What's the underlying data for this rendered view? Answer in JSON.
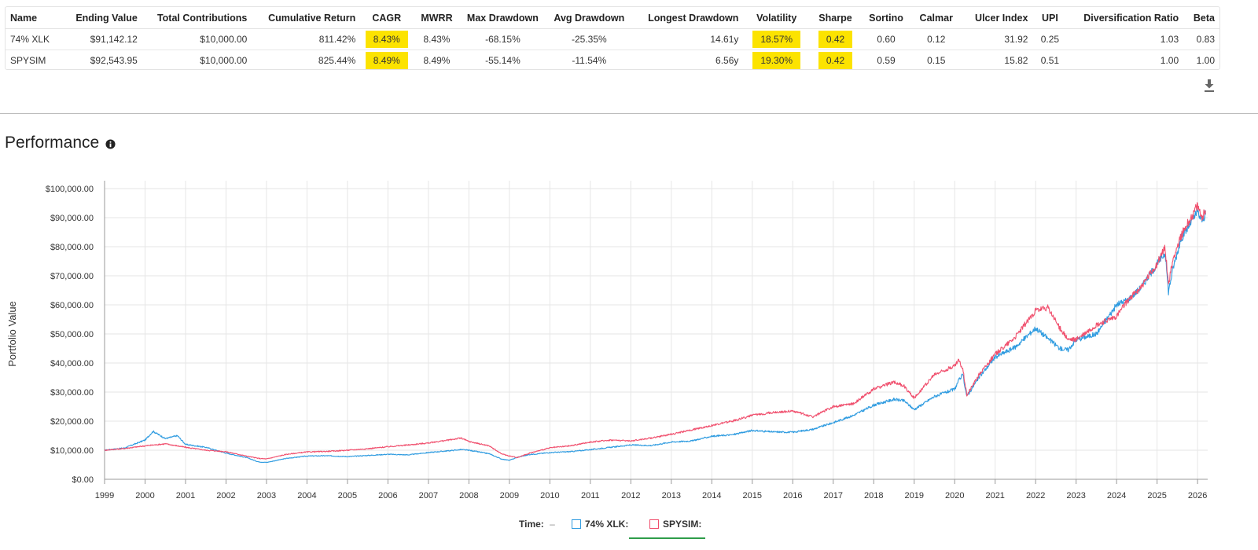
{
  "table": {
    "columns": [
      "Name",
      "Ending Value",
      "Total Contributions",
      "Cumulative Return",
      "CAGR",
      "MWRR",
      "Max Drawdown",
      "Avg Drawdown",
      "Longest Drawdown",
      "Volatility",
      "Sharpe",
      "Sortino",
      "Calmar",
      "Ulcer Index",
      "UPI",
      "Diversification Ratio",
      "Beta"
    ],
    "rows": [
      [
        "74% XLK",
        "$91,142.12",
        "$10,000.00",
        "811.42%",
        "8.43%",
        "8.43%",
        "-68.15%",
        "-25.35%",
        "14.61y",
        "18.57%",
        "0.42",
        "0.60",
        "0.12",
        "31.92",
        "0.25",
        "1.03",
        "0.83"
      ],
      [
        "SPYSIM",
        "$92,543.95",
        "$10,000.00",
        "825.44%",
        "8.49%",
        "8.49%",
        "-55.14%",
        "-11.54%",
        "6.56y",
        "19.30%",
        "0.42",
        "0.59",
        "0.15",
        "15.82",
        "0.51",
        "1.00",
        "1.00"
      ]
    ],
    "highlight_color": "#fce300"
  },
  "section": {
    "title": "Performance"
  },
  "icons": {
    "info": "info-icon",
    "download": "download-icon"
  },
  "legend": {
    "time_label": "Time:",
    "time_value": "–"
  },
  "chart_data": {
    "type": "line",
    "ylabel": "Portfolio Value",
    "xlim": [
      1999,
      2026.25
    ],
    "ylim": [
      0,
      100000
    ],
    "y_ticks": [
      "$0.00",
      "$10,000.00",
      "$20,000.00",
      "$30,000.00",
      "$40,000.00",
      "$50,000.00",
      "$60,000.00",
      "$70,000.00",
      "$80,000.00",
      "$90,000.00",
      "$100,000.00"
    ],
    "x_ticks": [
      "1999",
      "2000",
      "2001",
      "2002",
      "2003",
      "2004",
      "2005",
      "2006",
      "2007",
      "2008",
      "2009",
      "2010",
      "2011",
      "2012",
      "2013",
      "2014",
      "2015",
      "2016",
      "2017",
      "2018",
      "2019",
      "2020",
      "2021",
      "2022",
      "2023",
      "2024",
      "2025",
      "2026"
    ],
    "grid": true,
    "legend_position": "bottom-center",
    "series": [
      {
        "name": "74% XLK:",
        "color": "#2e9be0",
        "x": [
          1999,
          1999.5,
          2000,
          2000.2,
          2000.5,
          2000.8,
          2001,
          2001.5,
          2002,
          2002.5,
          2002.8,
          2003,
          2003.5,
          2004,
          2004.5,
          2005,
          2005.5,
          2006,
          2006.5,
          2007,
          2007.5,
          2007.8,
          2008,
          2008.5,
          2008.8,
          2009.0,
          2009.2,
          2009.5,
          2010,
          2010.5,
          2011,
          2011.5,
          2012,
          2012.5,
          2013,
          2013.5,
          2014,
          2014.5,
          2015,
          2015.5,
          2016,
          2016.5,
          2017,
          2017.5,
          2018,
          2018.5,
          2018.75,
          2019,
          2019.5,
          2020,
          2020.1,
          2020.2,
          2020.3,
          2020.6,
          2021,
          2021.5,
          2022,
          2022.3,
          2022.6,
          2022.8,
          2023,
          2023.5,
          2024,
          2024.3,
          2024.6,
          2025,
          2025.2,
          2025.28,
          2025.4,
          2025.6,
          2025.8,
          2026,
          2026.1,
          2026.2
        ],
        "y": [
          10000,
          10800,
          13500,
          16500,
          14000,
          15000,
          12000,
          11000,
          9000,
          7500,
          6000,
          5800,
          7200,
          8000,
          8100,
          7800,
          8200,
          8600,
          8400,
          9200,
          9800,
          10200,
          10000,
          8800,
          7000,
          6500,
          7600,
          8500,
          9200,
          9500,
          10200,
          11000,
          11800,
          11600,
          12800,
          13200,
          14800,
          15300,
          16800,
          16300,
          16200,
          17200,
          19500,
          22000,
          25500,
          27500,
          27000,
          24000,
          28500,
          31000,
          34000,
          36000,
          28500,
          35000,
          42000,
          45500,
          52000,
          48500,
          45000,
          44500,
          48000,
          50000,
          60000,
          62000,
          66000,
          74000,
          78000,
          64500,
          73000,
          83000,
          87500,
          92000,
          89000,
          91100
        ]
      },
      {
        "name": "SPYSIM:",
        "color": "#f0506e",
        "x": [
          1999,
          1999.5,
          2000,
          2000.5,
          2001,
          2001.5,
          2002,
          2002.5,
          2002.8,
          2003,
          2003.5,
          2004,
          2004.5,
          2005,
          2005.5,
          2006,
          2006.5,
          2007,
          2007.5,
          2007.8,
          2008,
          2008.5,
          2008.8,
          2009.0,
          2009.2,
          2009.5,
          2010,
          2010.5,
          2011,
          2011.5,
          2012,
          2012.5,
          2013,
          2013.5,
          2014,
          2014.5,
          2015,
          2015.5,
          2016,
          2016.5,
          2017,
          2017.5,
          2018,
          2018.5,
          2018.75,
          2019,
          2019.5,
          2020,
          2020.1,
          2020.2,
          2020.3,
          2020.6,
          2021,
          2021.5,
          2022,
          2022.3,
          2022.6,
          2022.8,
          2023,
          2023.5,
          2024,
          2024.3,
          2024.6,
          2025,
          2025.2,
          2025.28,
          2025.4,
          2025.6,
          2025.8,
          2026,
          2026.1,
          2026.2
        ],
        "y": [
          10000,
          10600,
          11500,
          12200,
          11000,
          10000,
          9500,
          8000,
          7200,
          7000,
          8600,
          9400,
          9600,
          10000,
          10500,
          11200,
          11800,
          12500,
          13500,
          14200,
          13000,
          11500,
          8800,
          8000,
          7500,
          9000,
          10800,
          11500,
          12800,
          13500,
          13200,
          14200,
          15500,
          17000,
          18500,
          20000,
          22000,
          23000,
          23500,
          21500,
          25000,
          26000,
          31000,
          33500,
          32000,
          28000,
          36000,
          39000,
          41000,
          38000,
          29000,
          36000,
          43000,
          49000,
          58000,
          59000,
          52000,
          48000,
          48000,
          53000,
          56000,
          62000,
          66000,
          74000,
          80000,
          67000,
          76000,
          84000,
          89000,
          94000,
          90000,
          92500
        ]
      }
    ]
  }
}
